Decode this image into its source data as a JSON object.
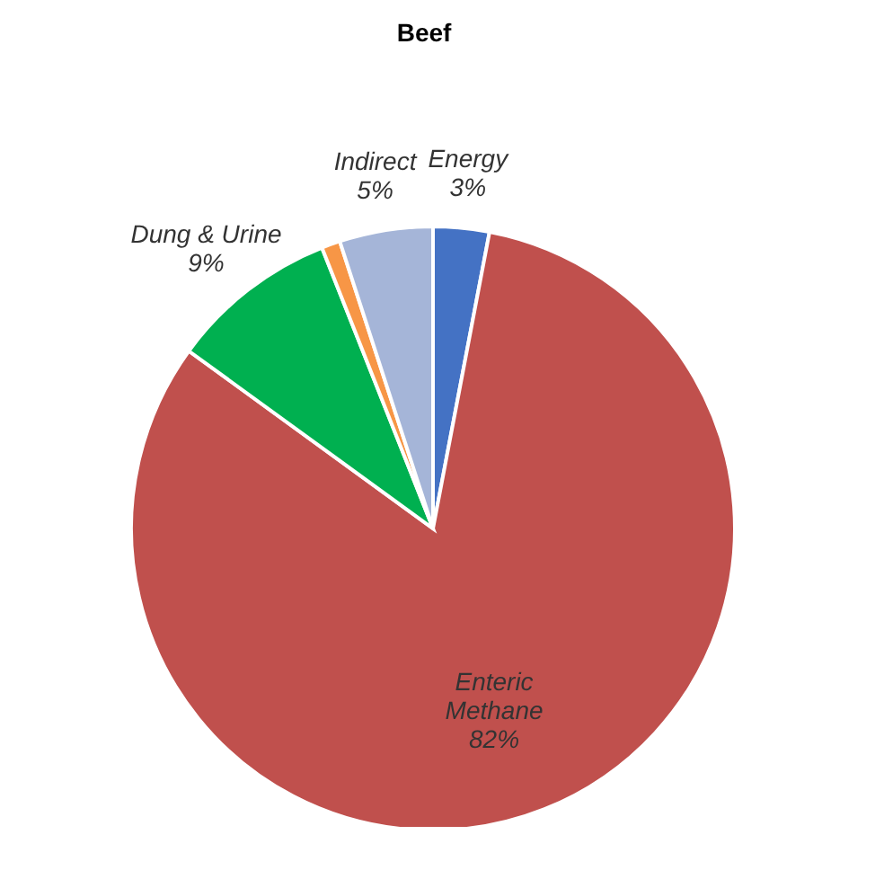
{
  "chart_data": {
    "type": "pie",
    "title": "Beef",
    "categories": [
      "Energy",
      "Enteric Methane",
      "Dung & Urine",
      null,
      "Indirect"
    ],
    "values": [
      3,
      82,
      9,
      1,
      5
    ],
    "value_labels": [
      "3%",
      "82%",
      "9%",
      null,
      "5%"
    ],
    "colors": [
      "#4472c4",
      "#c0504d",
      "#00b050",
      "#f79646",
      "#a5b5d8"
    ],
    "legend": false
  }
}
